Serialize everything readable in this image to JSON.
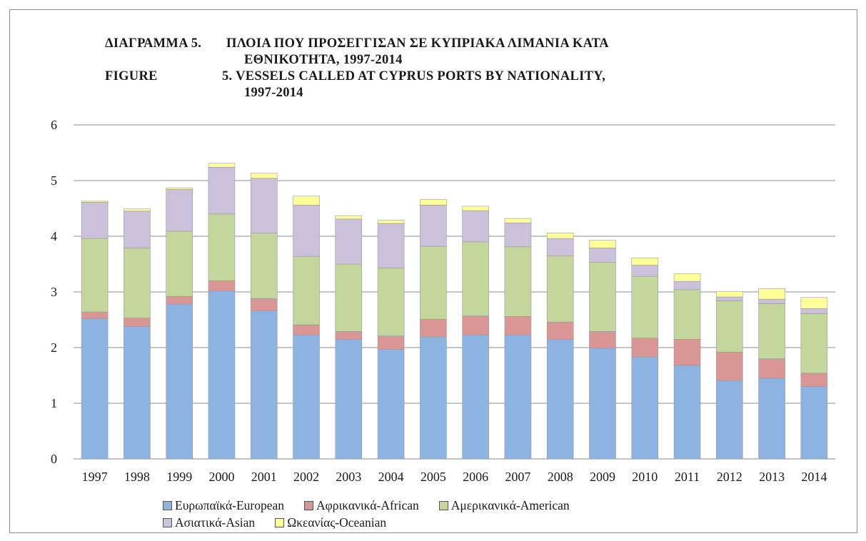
{
  "title": {
    "gr_label": "ΔΙΑΓΡΑΜΜΑ 5.",
    "gr_text_line1": "ΠΛΟΙΑ ΠΟΥ ΠΡΟΣΕΓΓΙΣΑΝ ΣΕ ΚΥΠΡΙΑΚΑ ΛΙΜΑΝΙΑ ΚΑΤΑ",
    "gr_text_line2": "ΕΘΝΙΚΟΤΗΤΑ, 1997-2014",
    "en_label": "FIGURE",
    "en_text_line1": "5.  VESSELS CALLED AT CYPRUS PORTS BY NATIONALITY,",
    "en_text_line2": "1997-2014"
  },
  "chart_data": {
    "type": "bar",
    "stacked": true,
    "categories": [
      "1997",
      "1998",
      "1999",
      "2000",
      "2001",
      "2002",
      "2003",
      "2004",
      "2005",
      "2006",
      "2007",
      "2008",
      "2009",
      "2010",
      "2011",
      "2012",
      "2013",
      "2014"
    ],
    "ylim": [
      0,
      6
    ],
    "yticks": [
      0,
      1,
      2,
      3,
      4,
      5,
      6
    ],
    "grid": true,
    "legend_position": "bottom",
    "series": [
      {
        "name": "Ευρωπαϊκά-European",
        "color": "#8DB3E2",
        "values": [
          2.52,
          2.38,
          2.78,
          3.02,
          2.66,
          2.23,
          2.15,
          1.97,
          2.19,
          2.23,
          2.23,
          2.15,
          1.99,
          1.83,
          1.68,
          1.41,
          1.45,
          1.3
        ]
      },
      {
        "name": "Αφρικανικά-African",
        "color": "#D99694",
        "values": [
          0.12,
          0.15,
          0.14,
          0.18,
          0.22,
          0.18,
          0.14,
          0.24,
          0.32,
          0.34,
          0.33,
          0.31,
          0.3,
          0.34,
          0.47,
          0.51,
          0.35,
          0.24
        ]
      },
      {
        "name": "Αμερικανικά-American",
        "color": "#C3D69B",
        "values": [
          1.32,
          1.26,
          1.17,
          1.2,
          1.18,
          1.23,
          1.21,
          1.22,
          1.31,
          1.33,
          1.25,
          1.19,
          1.24,
          1.11,
          0.89,
          0.92,
          0.99,
          1.07
        ]
      },
      {
        "name": "Ασιατικά-Asian",
        "color": "#CCC1DA",
        "values": [
          0.65,
          0.66,
          0.75,
          0.84,
          0.98,
          0.92,
          0.81,
          0.8,
          0.74,
          0.56,
          0.43,
          0.31,
          0.26,
          0.2,
          0.15,
          0.07,
          0.08,
          0.09
        ]
      },
      {
        "name": "Ωκεανίας-Oceanian",
        "color": "#FFFF99",
        "values": [
          0.02,
          0.04,
          0.03,
          0.07,
          0.09,
          0.16,
          0.06,
          0.06,
          0.1,
          0.08,
          0.08,
          0.1,
          0.14,
          0.13,
          0.14,
          0.1,
          0.19,
          0.2
        ]
      }
    ]
  }
}
